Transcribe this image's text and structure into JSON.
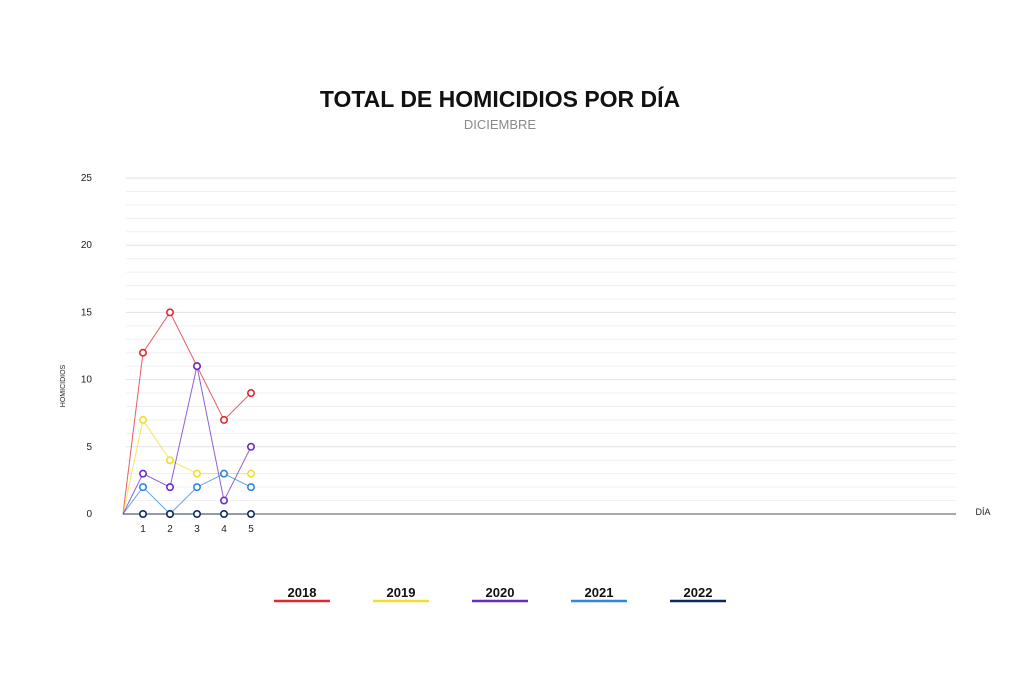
{
  "chart_data": {
    "type": "line",
    "title": "TOTAL DE HOMICIDIOS POR DÍA",
    "subtitle": "DICIEMBRE",
    "xlabel": "DÍA",
    "ylabel": "HOMICIDIOS",
    "x": [
      1,
      2,
      3,
      4,
      5
    ],
    "ylim": [
      0,
      25
    ],
    "yticks": [
      0,
      5,
      10,
      15,
      20,
      25
    ],
    "grid": true,
    "legend_position": "bottom",
    "series": [
      {
        "name": "2018",
        "color": "#e0282e",
        "values": [
          12,
          15,
          11,
          7,
          9
        ]
      },
      {
        "name": "2019",
        "color": "#f2dd2c",
        "values": [
          7,
          4,
          3,
          3,
          3
        ]
      },
      {
        "name": "2020",
        "color": "#6a2bc4",
        "values": [
          3,
          2,
          11,
          1,
          5
        ]
      },
      {
        "name": "2021",
        "color": "#2e86de",
        "values": [
          2,
          0,
          2,
          3,
          2
        ]
      },
      {
        "name": "2022",
        "color": "#0d2a5c",
        "values": [
          0,
          0,
          0,
          0,
          0
        ]
      }
    ]
  }
}
